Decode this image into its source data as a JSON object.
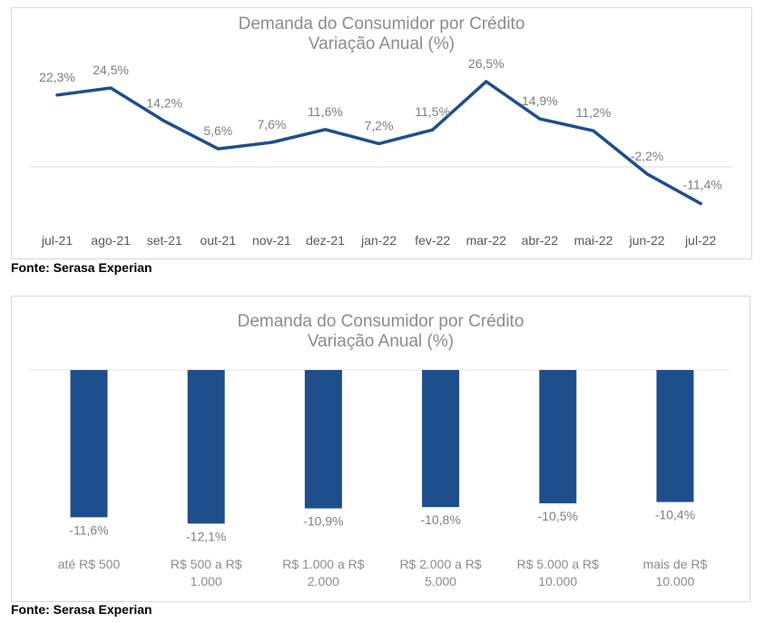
{
  "charts": [
    {
      "title_line1": "Demanda do Consumidor por Crédito",
      "title_line2": "Variação Anual (%)",
      "source": "Fonte: Serasa Experian"
    },
    {
      "title_line1": "Demanda do Consumidor por Crédito",
      "title_line2": "Variação Anual (%)",
      "source": "Fonte: Serasa Experian"
    }
  ],
  "colors": {
    "series": "#1f4e8c",
    "label_text": "#7f7f7f",
    "axis": "#d9d9d9",
    "title": "#8c8c8c"
  },
  "chart_data": [
    {
      "type": "line",
      "title": "Demanda do Consumidor por Crédito — Variação Anual (%)",
      "categories": [
        "jul-21",
        "ago-21",
        "set-21",
        "out-21",
        "nov-21",
        "dez-21",
        "jan-22",
        "fev-22",
        "mar-22",
        "abr-22",
        "mai-22",
        "jun-22",
        "jul-22"
      ],
      "values": [
        22.3,
        24.5,
        14.2,
        5.6,
        7.6,
        11.6,
        7.2,
        11.5,
        26.5,
        14.9,
        11.2,
        -2.2,
        -11.4
      ],
      "data_labels": [
        "22,3%",
        "24,5%",
        "14,2%",
        "5,6%",
        "7,6%",
        "11,6%",
        "7,2%",
        "11,5%",
        "26,5%",
        "14,9%",
        "11,2%",
        "-2,2%",
        "-11,4%"
      ],
      "grid": false,
      "legend": "none"
    },
    {
      "type": "bar",
      "title": "Demanda do Consumidor por Crédito — Variação Anual (%)",
      "categories": [
        [
          "até R$ 500"
        ],
        [
          "R$ 500 a R$",
          "1.000"
        ],
        [
          "R$ 1.000 a R$",
          "2.000"
        ],
        [
          "R$ 2.000 a R$",
          "5.000"
        ],
        [
          "R$ 5.000 a R$",
          "10.000"
        ],
        [
          "mais de R$",
          "10.000"
        ]
      ],
      "values": [
        -11.6,
        -12.1,
        -10.9,
        -10.8,
        -10.5,
        -10.4
      ],
      "data_labels": [
        "-11,6%",
        "-12,1%",
        "-10,9%",
        "-10,8%",
        "-10,5%",
        "-10,4%"
      ],
      "grid": false,
      "legend": "none"
    }
  ]
}
